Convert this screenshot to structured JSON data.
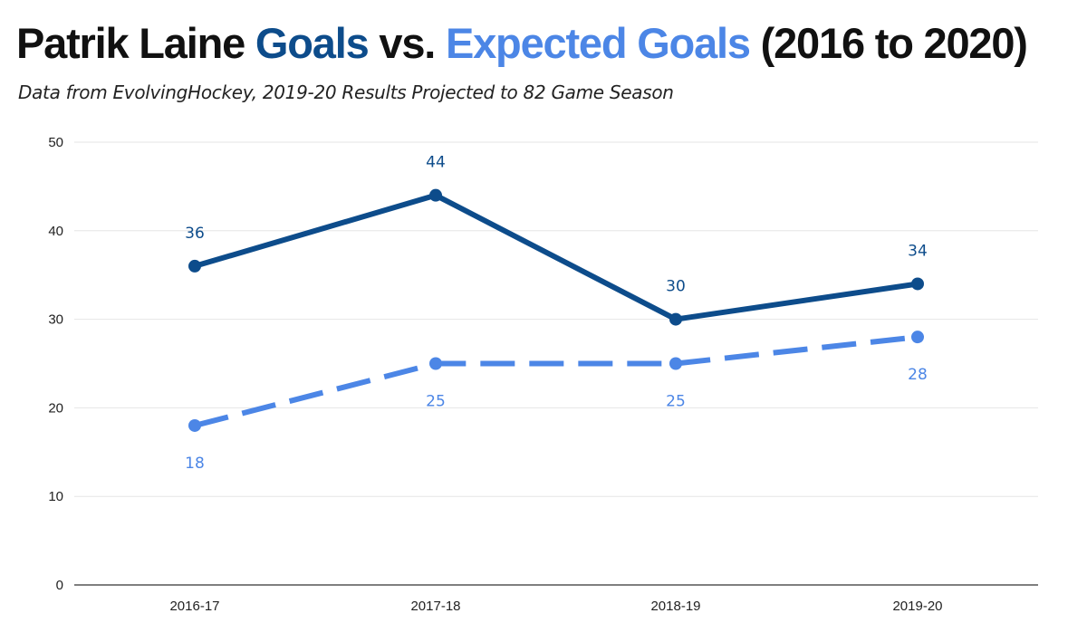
{
  "title": {
    "part1": "Patrik Laine ",
    "part2": "Goals",
    "part3": " vs. ",
    "part4": "Expected Goals",
    "part5": " (2016 to 2020)"
  },
  "subtitle": "Data from EvolvingHockey, 2019-20 Results Projected to 82 Game Season",
  "colors": {
    "goals": "#0d4c8b",
    "expected": "#4c86e6",
    "grid": "#e6e6e6",
    "axis": "#333333"
  },
  "chart_data": {
    "type": "line",
    "categories": [
      "2016-17",
      "2017-18",
      "2018-19",
      "2019-20"
    ],
    "ylim": [
      0,
      50
    ],
    "yticks": [
      0,
      10,
      20,
      30,
      40,
      50
    ],
    "grid": true,
    "series": [
      {
        "key": "goals",
        "values": [
          36,
          44,
          30,
          34
        ],
        "line_style": "solid",
        "label_position": "above"
      },
      {
        "key": "expected",
        "values": [
          18,
          25,
          25,
          28
        ],
        "line_style": "dashed",
        "label_position": "below"
      }
    ]
  }
}
